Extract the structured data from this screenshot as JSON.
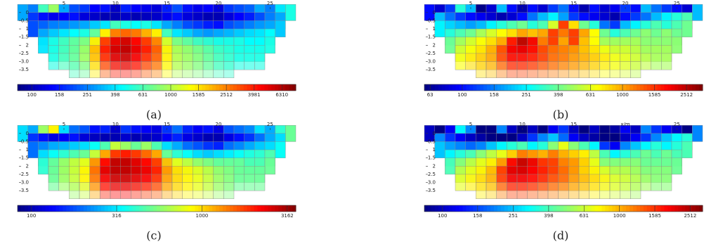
{
  "chart_data": [
    {
      "type": "heatmap",
      "caption": "(a)",
      "x": [
        1,
        2,
        3,
        4,
        5,
        6,
        7,
        8,
        9,
        10,
        11,
        12,
        13,
        14,
        15,
        16,
        17,
        18,
        19,
        20,
        21,
        22,
        23,
        24,
        25,
        26,
        27
      ],
      "y": [
        0,
        0.5,
        1,
        1.5,
        2,
        2.5,
        3,
        3.5
      ],
      "xlim": [
        0.5,
        27.5
      ],
      "ylim": [
        -0.25,
        3.75
      ],
      "xticks": [
        5,
        10,
        15,
        20,
        25
      ],
      "yticks": [
        0,
        0.5,
        1,
        1.5,
        2,
        2.5,
        {
          "value": 3,
          "label": "3.0"
        },
        3.5
      ],
      "z": [
        [
          300,
          250,
          600,
          900,
          300,
          200,
          180,
          140,
          150,
          110,
          160,
          140,
          130,
          120,
          160,
          200,
          150,
          130,
          140,
          120,
          180,
          200,
          220,
          300,
          250,
          400,
          500
        ],
        [
          null,
          180,
          150,
          130,
          140,
          150,
          120,
          110,
          100,
          100,
          110,
          100,
          105,
          110,
          130,
          150,
          120,
          110,
          100,
          100,
          120,
          140,
          160,
          200,
          250,
          300,
          null
        ],
        [
          null,
          200,
          220,
          250,
          260,
          280,
          300,
          350,
          400,
          600,
          500,
          450,
          500,
          400,
          300,
          250,
          200,
          180,
          160,
          150,
          200,
          220,
          250,
          280,
          300,
          350,
          null
        ],
        [
          null,
          null,
          300,
          350,
          400,
          450,
          500,
          700,
          1500,
          2500,
          2800,
          2600,
          2000,
          1500,
          600,
          400,
          350,
          300,
          280,
          300,
          320,
          350,
          380,
          400,
          450,
          null,
          null
        ],
        [
          null,
          null,
          400,
          500,
          600,
          700,
          800,
          1500,
          3500,
          5000,
          5500,
          4500,
          3500,
          2500,
          1200,
          800,
          700,
          600,
          550,
          500,
          500,
          500,
          450,
          450,
          500,
          null,
          null
        ],
        [
          null,
          null,
          null,
          500,
          600,
          700,
          900,
          2000,
          4000,
          5500,
          6000,
          5000,
          4000,
          3000,
          1500,
          1000,
          900,
          800,
          700,
          600,
          550,
          500,
          500,
          500,
          null,
          null,
          null
        ],
        [
          null,
          null,
          null,
          500,
          600,
          700,
          900,
          1800,
          3500,
          5000,
          5500,
          4500,
          3500,
          2800,
          1500,
          1000,
          900,
          800,
          700,
          600,
          550,
          500,
          500,
          500,
          null,
          null,
          null
        ],
        [
          null,
          null,
          null,
          null,
          null,
          600,
          700,
          1500,
          3000,
          4000,
          4200,
          3800,
          3000,
          2500,
          1400,
          1000,
          900,
          800,
          700,
          600,
          550,
          null,
          null,
          null,
          null,
          null,
          null
        ]
      ],
      "colorbar": {
        "scale": "log",
        "colormap": "jet",
        "lim": [
          79,
          7943
        ],
        "ticks": [
          100,
          158,
          251,
          398,
          631,
          1000,
          1585,
          2512,
          3981,
          6310
        ]
      }
    },
    {
      "type": "heatmap",
      "caption": "(b)",
      "x": [
        1,
        2,
        3,
        4,
        5,
        6,
        7,
        8,
        9,
        10,
        11,
        12,
        13,
        14,
        15,
        16,
        17,
        18,
        19,
        20,
        21,
        22,
        23,
        24,
        25,
        26,
        27
      ],
      "y": [
        0,
        0.5,
        1,
        1.5,
        2,
        2.5,
        3,
        3.5
      ],
      "xlim": [
        0.5,
        27.5
      ],
      "ylim": [
        -0.25,
        3.75
      ],
      "xticks": [
        5,
        10,
        15,
        20,
        25
      ],
      "yticks": [
        0,
        0.5,
        1,
        1.5,
        2,
        2.5,
        {
          "value": 3,
          "label": "3.0"
        },
        3.5
      ],
      "z": [
        [
          100,
          80,
          120,
          300,
          200,
          60,
          80,
          200,
          100,
          70,
          100,
          80,
          120,
          150,
          100,
          70,
          100,
          80,
          90,
          120,
          100,
          200,
          150,
          120,
          100,
          80,
          200
        ],
        [
          null,
          200,
          150,
          120,
          100,
          90,
          80,
          70,
          80,
          100,
          150,
          200,
          250,
          180,
          120,
          100,
          90,
          80,
          70,
          100,
          120,
          150,
          200,
          250,
          300,
          350,
          null
        ],
        [
          null,
          250,
          220,
          200,
          180,
          200,
          250,
          300,
          350,
          400,
          300,
          350,
          600,
          1500,
          800,
          400,
          300,
          150,
          120,
          200,
          250,
          300,
          350,
          300,
          350,
          400,
          null
        ],
        [
          null,
          null,
          300,
          350,
          400,
          500,
          600,
          700,
          800,
          1000,
          900,
          1000,
          1500,
          1200,
          1500,
          1000,
          700,
          400,
          300,
          350,
          400,
          450,
          400,
          450,
          400,
          null,
          null
        ],
        [
          null,
          null,
          400,
          500,
          600,
          700,
          800,
          1000,
          1800,
          2500,
          2000,
          1200,
          1500,
          1000,
          1500,
          900,
          700,
          500,
          500,
          500,
          500,
          450,
          450,
          450,
          450,
          null,
          null
        ],
        [
          null,
          null,
          null,
          600,
          700,
          800,
          1000,
          1500,
          2000,
          2000,
          1800,
          1500,
          1200,
          1200,
          1000,
          900,
          800,
          700,
          600,
          600,
          550,
          500,
          500,
          500,
          null,
          null,
          null
        ],
        [
          null,
          null,
          null,
          700,
          800,
          900,
          1000,
          1400,
          1800,
          1800,
          1700,
          1500,
          1300,
          1200,
          1100,
          1000,
          900,
          800,
          700,
          650,
          600,
          550,
          500,
          500,
          null,
          null,
          null
        ],
        [
          null,
          null,
          null,
          null,
          null,
          800,
          900,
          1200,
          1500,
          1500,
          1400,
          1300,
          1200,
          1100,
          1000,
          900,
          800,
          700,
          650,
          600,
          550,
          null,
          null,
          null,
          null,
          null,
          null
        ]
      ],
      "colorbar": {
        "scale": "log",
        "colormap": "jet",
        "lim": [
          58,
          3162
        ],
        "ticks": [
          63,
          100,
          158,
          251,
          398,
          631,
          1000,
          1585,
          2512
        ]
      }
    },
    {
      "type": "heatmap",
      "caption": "(c)",
      "x": [
        1,
        2,
        3,
        4,
        5,
        6,
        7,
        8,
        9,
        10,
        11,
        12,
        13,
        14,
        15,
        16,
        17,
        18,
        19,
        20,
        21,
        22,
        23,
        24,
        25,
        26,
        27
      ],
      "y": [
        0,
        0.5,
        1,
        1.5,
        2,
        2.5,
        3,
        3.5
      ],
      "xlim": [
        0.5,
        27.5
      ],
      "ylim": [
        -0.25,
        3.75
      ],
      "xticks": [
        5,
        10,
        15,
        20,
        25
      ],
      "yticks": [
        0,
        0.5,
        1,
        1.5,
        2,
        2.5,
        {
          "value": 3,
          "label": "3.0"
        },
        3.5
      ],
      "z": [
        [
          300,
          250,
          600,
          900,
          300,
          200,
          180,
          140,
          150,
          110,
          160,
          140,
          130,
          120,
          160,
          200,
          150,
          130,
          140,
          120,
          180,
          200,
          220,
          300,
          250,
          400,
          500
        ],
        [
          null,
          160,
          140,
          120,
          130,
          140,
          115,
          105,
          100,
          100,
          110,
          100,
          105,
          110,
          130,
          150,
          120,
          110,
          100,
          100,
          120,
          140,
          160,
          200,
          250,
          300,
          null
        ],
        [
          null,
          200,
          220,
          250,
          260,
          280,
          300,
          350,
          450,
          700,
          600,
          500,
          600,
          450,
          300,
          250,
          200,
          180,
          160,
          150,
          200,
          220,
          250,
          280,
          300,
          350,
          null
        ],
        [
          null,
          null,
          300,
          350,
          400,
          450,
          500,
          700,
          1200,
          1800,
          2000,
          1800,
          1500,
          1200,
          500,
          400,
          350,
          300,
          280,
          300,
          320,
          350,
          380,
          400,
          450,
          null,
          null
        ],
        [
          null,
          null,
          400,
          500,
          600,
          700,
          800,
          1300,
          2200,
          2800,
          2800,
          2500,
          2200,
          1800,
          1100,
          800,
          700,
          600,
          550,
          500,
          500,
          500,
          450,
          450,
          500,
          null,
          null
        ],
        [
          null,
          null,
          null,
          500,
          600,
          700,
          900,
          1500,
          2500,
          2800,
          2800,
          2600,
          2400,
          2000,
          1300,
          1000,
          900,
          800,
          700,
          600,
          550,
          500,
          500,
          500,
          null,
          null,
          null
        ],
        [
          null,
          null,
          null,
          500,
          600,
          700,
          900,
          1400,
          2200,
          2600,
          2600,
          2400,
          2200,
          1800,
          1200,
          1000,
          900,
          800,
          700,
          600,
          550,
          500,
          500,
          500,
          null,
          null,
          null
        ],
        [
          null,
          null,
          null,
          null,
          null,
          600,
          700,
          1200,
          2000,
          2200,
          2200,
          2000,
          1800,
          1600,
          1200,
          1000,
          900,
          800,
          700,
          600,
          550,
          null,
          null,
          null,
          null,
          null,
          null
        ]
      ],
      "colorbar": {
        "scale": "log",
        "colormap": "jet",
        "lim": [
          83,
          3548
        ],
        "ticks": [
          100,
          316,
          1000,
          3162
        ]
      }
    },
    {
      "type": "heatmap",
      "caption": "(d)",
      "x": [
        1,
        2,
        3,
        4,
        5,
        6,
        7,
        8,
        9,
        10,
        11,
        12,
        13,
        14,
        15,
        16,
        17,
        18,
        19,
        20,
        21,
        22,
        23,
        24,
        25,
        26,
        27
      ],
      "y": [
        0,
        0.5,
        1,
        1.5,
        2,
        2.5,
        3,
        3.5
      ],
      "xlim": [
        0.5,
        27.5
      ],
      "ylim": [
        -0.25,
        3.75
      ],
      "xticks": [
        5,
        10,
        15,
        {
          "value": 20,
          "label": "x/m"
        },
        25
      ],
      "yticks": [
        0,
        0.5,
        1,
        1.5,
        2,
        2.5,
        {
          "value": 3,
          "label": "3.0"
        },
        3.5
      ],
      "z": [
        [
          100,
          80,
          120,
          300,
          200,
          60,
          80,
          200,
          100,
          70,
          100,
          80,
          120,
          150,
          100,
          70,
          100,
          80,
          90,
          120,
          100,
          200,
          150,
          120,
          100,
          80,
          200
        ],
        [
          null,
          200,
          150,
          120,
          100,
          90,
          80,
          70,
          80,
          100,
          150,
          200,
          250,
          180,
          120,
          100,
          90,
          80,
          70,
          100,
          120,
          150,
          200,
          250,
          300,
          350,
          null
        ],
        [
          null,
          250,
          220,
          200,
          180,
          200,
          250,
          300,
          350,
          400,
          300,
          350,
          500,
          700,
          500,
          400,
          300,
          150,
          120,
          200,
          250,
          300,
          350,
          300,
          350,
          400,
          null
        ],
        [
          null,
          null,
          300,
          350,
          400,
          500,
          600,
          700,
          900,
          1200,
          1100,
          1000,
          1200,
          1000,
          900,
          800,
          600,
          400,
          300,
          350,
          400,
          450,
          400,
          450,
          400,
          null,
          null
        ],
        [
          null,
          null,
          400,
          500,
          600,
          700,
          800,
          1100,
          1900,
          2300,
          2000,
          1600,
          1500,
          1200,
          1100,
          900,
          700,
          500,
          500,
          500,
          500,
          450,
          450,
          450,
          450,
          null,
          null
        ],
        [
          null,
          null,
          null,
          600,
          700,
          800,
          1000,
          1600,
          2100,
          2100,
          1900,
          1700,
          1500,
          1300,
          1100,
          900,
          800,
          700,
          600,
          600,
          550,
          500,
          500,
          500,
          null,
          null,
          null
        ],
        [
          null,
          null,
          null,
          700,
          800,
          900,
          1000,
          1500,
          1900,
          1900,
          1800,
          1600,
          1400,
          1300,
          1100,
          1000,
          900,
          800,
          700,
          650,
          600,
          550,
          500,
          500,
          null,
          null,
          null
        ],
        [
          null,
          null,
          null,
          null,
          null,
          800,
          900,
          1200,
          1500,
          1500,
          1400,
          1300,
          1200,
          1100,
          1000,
          900,
          800,
          700,
          650,
          600,
          550,
          null,
          null,
          null,
          null,
          null,
          null
        ]
      ],
      "colorbar": {
        "scale": "log",
        "colormap": "jet",
        "lim": [
          79,
          2951
        ],
        "ticks": [
          100,
          158,
          251,
          398,
          631,
          1000,
          1585,
          2512
        ]
      }
    }
  ]
}
